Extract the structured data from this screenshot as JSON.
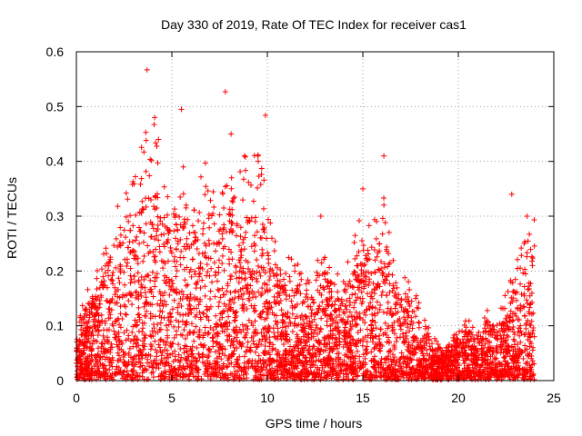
{
  "chart_data": {
    "type": "scatter",
    "title": "Day 330 of 2019, Rate Of TEC Index for receiver cas1",
    "xlabel": "GPS time / hours",
    "ylabel": "ROTI / TECUs",
    "xlim": [
      0,
      25
    ],
    "ylim": [
      0,
      0.6
    ],
    "xticks": [
      "0",
      "5",
      "10",
      "15",
      "20",
      "25"
    ],
    "yticks": [
      "0",
      "0.1",
      "0.2",
      "0.3",
      "0.4",
      "0.5",
      "0.6"
    ],
    "grid": true,
    "marker": "+",
    "color": "#ff0000",
    "envelope": {
      "description": "approximate upper envelope of the dense point cloud (hours, TECU)",
      "x": [
        0,
        0.5,
        1,
        1.5,
        2,
        2.5,
        3,
        3.5,
        4,
        4.5,
        5,
        5.5,
        6,
        6.5,
        7,
        7.5,
        8,
        8.5,
        9,
        9.5,
        10,
        10.5,
        11,
        11.5,
        12,
        12.5,
        13,
        13.5,
        14,
        14.5,
        15,
        15.5,
        16,
        16.5,
        17,
        17.5,
        18,
        18.5,
        19,
        19.5,
        20,
        20.5,
        21,
        21.5,
        22,
        22.5,
        23,
        23.5,
        24
      ],
      "y": [
        0.07,
        0.13,
        0.15,
        0.2,
        0.25,
        0.28,
        0.27,
        0.33,
        0.36,
        0.3,
        0.28,
        0.3,
        0.24,
        0.28,
        0.31,
        0.26,
        0.3,
        0.28,
        0.32,
        0.33,
        0.24,
        0.2,
        0.17,
        0.16,
        0.15,
        0.15,
        0.2,
        0.14,
        0.16,
        0.19,
        0.25,
        0.22,
        0.3,
        0.18,
        0.16,
        0.14,
        0.1,
        0.07,
        0.05,
        0.06,
        0.07,
        0.09,
        0.06,
        0.1,
        0.09,
        0.12,
        0.16,
        0.2,
        0.22
      ]
    },
    "outliers": {
      "x": [
        3.7,
        4.1,
        5.5,
        7.8,
        9.9,
        8.1,
        9.5,
        16.1,
        15.0,
        22.8,
        4.3,
        5.6,
        8.8,
        12.8,
        23.6
      ],
      "y": [
        0.567,
        0.48,
        0.495,
        0.527,
        0.484,
        0.45,
        0.41,
        0.41,
        0.35,
        0.34,
        0.44,
        0.39,
        0.41,
        0.3,
        0.3
      ]
    }
  }
}
